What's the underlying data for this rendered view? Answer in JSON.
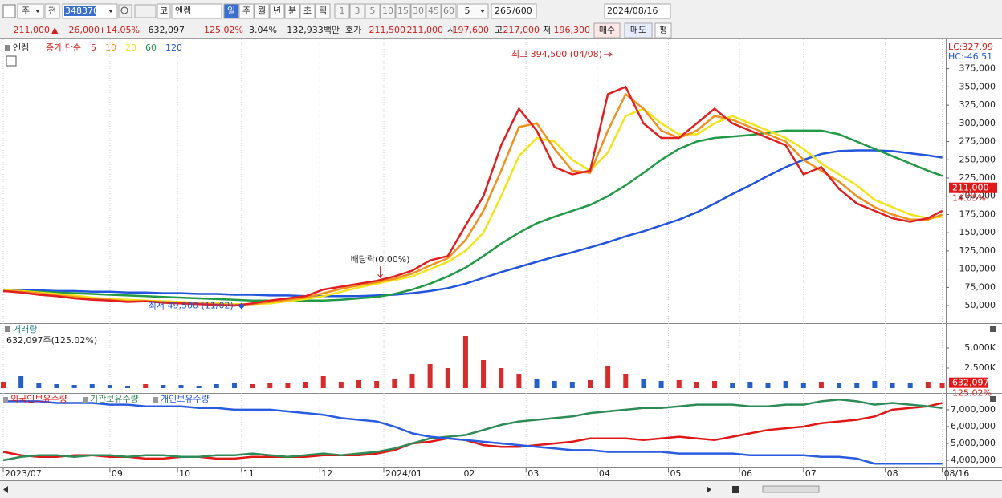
{
  "toolbar": {
    "market": "주",
    "prev": "전",
    "code": "348370",
    "exchange": "코",
    "name": "엔켐",
    "periods": [
      "일",
      "주",
      "월",
      "년",
      "분",
      "초",
      "틱"
    ],
    "minutes": [
      "1",
      "3",
      "5",
      "10",
      "15",
      "30",
      "45",
      "60"
    ],
    "interval": "5",
    "count": "265",
    "max": "/600",
    "date": "2024/08/16"
  },
  "quote": {
    "price": "211,000",
    "arrow": "▲",
    "change": "26,000",
    "rate": "+14.05%",
    "volume": "632,097",
    "volume_rate": "125.02%",
    "turnover": "3.04%",
    "amount": "132,933백만",
    "ask_label": "호가",
    "ask": "211,500",
    "bid": "211,000",
    "open_label": "시",
    "open": "197,600",
    "high_label": "고",
    "high": "217,000",
    "low_label": "저",
    "low": "196,300",
    "buy": "매수",
    "sell": "매도",
    "avg": "평"
  },
  "chart_data": [
    {
      "type": "line",
      "name": "엔켐",
      "subtitle": "종가 단순",
      "x": [
        0,
        5,
        10,
        15,
        20,
        25,
        30,
        35,
        40,
        45,
        50,
        55,
        60,
        65,
        70,
        75,
        80,
        85,
        90,
        95,
        100,
        105,
        110,
        115,
        120,
        125,
        130,
        135,
        140,
        145,
        150,
        155,
        160,
        165,
        170,
        175,
        180,
        185,
        190,
        195,
        200,
        205,
        210,
        215,
        220,
        225,
        230,
        235,
        240,
        245,
        250,
        255,
        260,
        264
      ],
      "series": [
        {
          "name": "5",
          "color": "#e02020",
          "values": [
            70000,
            68000,
            65000,
            63000,
            60000,
            58000,
            57000,
            55000,
            56000,
            54000,
            53000,
            52000,
            51000,
            50000,
            53000,
            57000,
            60000,
            63000,
            72000,
            76000,
            80000,
            84000,
            90000,
            98000,
            112000,
            118000,
            160000,
            200000,
            270000,
            320000,
            290000,
            240000,
            230000,
            235000,
            340000,
            350000,
            300000,
            280000,
            280000,
            300000,
            320000,
            300000,
            290000,
            280000,
            270000,
            230000,
            240000,
            210000,
            190000,
            180000,
            170000,
            165000,
            170000,
            180000
          ]
        },
        {
          "name": "10",
          "color": "#f0901e",
          "values": [
            70000,
            69000,
            67000,
            64000,
            62000,
            59000,
            58000,
            56000,
            56000,
            55000,
            54000,
            53000,
            52000,
            51000,
            52000,
            55000,
            58000,
            61000,
            67000,
            73000,
            78000,
            82000,
            87000,
            94000,
            105000,
            115000,
            140000,
            180000,
            235000,
            295000,
            300000,
            265000,
            235000,
            232000,
            290000,
            340000,
            320000,
            290000,
            280000,
            290000,
            310000,
            305000,
            295000,
            285000,
            275000,
            250000,
            235000,
            220000,
            200000,
            185000,
            175000,
            168000,
            168000,
            175000
          ]
        },
        {
          "name": "20",
          "color": "#f2e41a",
          "values": [
            71000,
            70000,
            68000,
            66000,
            64000,
            61000,
            59000,
            58000,
            57000,
            56000,
            55000,
            54000,
            53000,
            52000,
            52000,
            53000,
            56000,
            59000,
            63000,
            69000,
            75000,
            80000,
            85000,
            90000,
            100000,
            110000,
            125000,
            150000,
            200000,
            255000,
            280000,
            275000,
            250000,
            235000,
            260000,
            310000,
            320000,
            300000,
            285000,
            285000,
            300000,
            310000,
            300000,
            290000,
            280000,
            265000,
            245000,
            230000,
            215000,
            195000,
            185000,
            175000,
            170000,
            172000
          ]
        },
        {
          "name": "60",
          "color": "#229944",
          "values": [
            70000,
            70000,
            69000,
            68000,
            67000,
            66000,
            65000,
            64000,
            63000,
            62000,
            61000,
            60000,
            59000,
            58000,
            57000,
            57000,
            57000,
            57000,
            57000,
            58000,
            60000,
            62000,
            66000,
            72000,
            80000,
            90000,
            102000,
            118000,
            135000,
            150000,
            163000,
            172000,
            180000,
            188000,
            200000,
            215000,
            232000,
            250000,
            265000,
            275000,
            280000,
            282000,
            284000,
            287000,
            290000,
            290000,
            290000,
            285000,
            275000,
            265000,
            255000,
            245000,
            235000,
            228000
          ]
        },
        {
          "name": "120",
          "color": "#2255dd",
          "values": [
            72000,
            71000,
            71000,
            70000,
            70000,
            69000,
            69000,
            68000,
            68000,
            67000,
            67000,
            66000,
            66000,
            65000,
            65000,
            64000,
            64000,
            63000,
            63000,
            63000,
            63000,
            64000,
            65000,
            67000,
            70000,
            74000,
            80000,
            88000,
            96000,
            103000,
            110000,
            117000,
            123000,
            130000,
            137000,
            145000,
            152000,
            160000,
            168000,
            178000,
            190000,
            203000,
            215000,
            228000,
            240000,
            250000,
            258000,
            262000,
            263000,
            263000,
            262000,
            259000,
            256000,
            253000
          ]
        }
      ],
      "xlim": [
        0,
        265
      ],
      "ylim": [
        27000,
        412000
      ],
      "yticks": [
        {
          "value": 50000,
          "label": "50,000"
        },
        {
          "value": 75000,
          "label": "75,000"
        },
        {
          "value": 100000,
          "label": "100,000"
        },
        {
          "value": 125000,
          "label": "125,000"
        },
        {
          "value": 150000,
          "label": "150,000"
        },
        {
          "value": 175000,
          "label": "175,000"
        },
        {
          "value": 200000,
          "label": "200,000"
        },
        {
          "value": 225000,
          "label": "225,000"
        },
        {
          "value": 250000,
          "label": "250,000"
        },
        {
          "value": 275000,
          "label": "275,000"
        },
        {
          "value": 300000,
          "label": "300,000"
        },
        {
          "value": 325000,
          "label": "325,000"
        },
        {
          "value": 350000,
          "label": "350,000"
        },
        {
          "value": 375000,
          "label": "375,000"
        }
      ],
      "annotations": [
        {
          "text": "최고 394,500 (04/08)",
          "x": 172,
          "value": 394500
        },
        {
          "text": "최저 49,500 (11/02)",
          "x": 67,
          "value": 49500
        },
        {
          "text": "배당락(0.00%)",
          "x": 106,
          "value": 84000
        }
      ],
      "indicators": [
        "LC:327.99",
        "HC:-46.51"
      ],
      "last": {
        "value": 211000,
        "label": "211,000"
      },
      "last_change": "14.05%"
    },
    {
      "type": "bar",
      "title": "거래량",
      "subtitle": "632,097주(125.02%)",
      "x": [
        0,
        5,
        10,
        15,
        20,
        25,
        30,
        35,
        40,
        45,
        50,
        55,
        60,
        65,
        70,
        75,
        80,
        85,
        90,
        95,
        100,
        105,
        110,
        115,
        120,
        125,
        130,
        135,
        140,
        145,
        150,
        155,
        160,
        165,
        170,
        175,
        180,
        185,
        190,
        195,
        200,
        205,
        210,
        215,
        220,
        225,
        230,
        235,
        240,
        245,
        250,
        255,
        260,
        264
      ],
      "values": [
        800000,
        1500000,
        600000,
        500000,
        400000,
        500000,
        400000,
        300000,
        500000,
        400000,
        400000,
        300000,
        500000,
        600000,
        500000,
        700000,
        600000,
        800000,
        1500000,
        800000,
        1000000,
        900000,
        1200000,
        1800000,
        3000000,
        2500000,
        6500000,
        3500000,
        2500000,
        1800000,
        1200000,
        900000,
        800000,
        1000000,
        2800000,
        1800000,
        1200000,
        900000,
        1000000,
        800000,
        900000,
        700000,
        800000,
        600000,
        900000,
        700000,
        800000,
        600000,
        700000,
        900000,
        700000,
        600000,
        800000,
        632097
      ],
      "xlim": [
        0,
        265
      ],
      "ylim": [
        0,
        7500000
      ],
      "yticks": [
        {
          "value": 2500000,
          "label": "2,500K"
        },
        {
          "value": 5000000,
          "label": "5,000K"
        }
      ],
      "last": {
        "value": 632097,
        "label": "632,097"
      },
      "last_rate": "125.02%"
    },
    {
      "type": "line",
      "x": [
        0,
        5,
        10,
        15,
        20,
        25,
        30,
        35,
        40,
        45,
        50,
        55,
        60,
        65,
        70,
        75,
        80,
        85,
        90,
        95,
        100,
        105,
        110,
        115,
        120,
        125,
        130,
        135,
        140,
        145,
        150,
        155,
        160,
        165,
        170,
        175,
        180,
        185,
        190,
        195,
        200,
        205,
        210,
        215,
        220,
        225,
        230,
        235,
        240,
        245,
        250,
        255,
        260,
        264
      ],
      "series": [
        {
          "name": "외국인보유수량",
          "color": "#e01818",
          "values": [
            4500000,
            4300000,
            4200000,
            4200000,
            4300000,
            4300000,
            4200000,
            4200000,
            4100000,
            4100000,
            4200000,
            4200000,
            4100000,
            4100000,
            4200000,
            4200000,
            4200000,
            4200000,
            4300000,
            4300000,
            4300000,
            4400000,
            4600000,
            5000000,
            5100000,
            5300000,
            5200000,
            4900000,
            4800000,
            4800000,
            4900000,
            5000000,
            5100000,
            5300000,
            5300000,
            5300000,
            5200000,
            5300000,
            5400000,
            5300000,
            5200000,
            5400000,
            5600000,
            5800000,
            5900000,
            6000000,
            6200000,
            6300000,
            6400000,
            6600000,
            7000000,
            7100000,
            7200000,
            7400000
          ]
        },
        {
          "name": "기관보유수량",
          "color": "#2e8b57",
          "values": [
            4000000,
            4200000,
            4300000,
            4300000,
            4200000,
            4300000,
            4300000,
            4200000,
            4300000,
            4300000,
            4200000,
            4200000,
            4300000,
            4300000,
            4400000,
            4300000,
            4200000,
            4300000,
            4400000,
            4300000,
            4400000,
            4500000,
            4700000,
            5000000,
            5300000,
            5400000,
            5500000,
            5800000,
            6100000,
            6300000,
            6400000,
            6500000,
            6600000,
            6800000,
            6900000,
            7000000,
            7100000,
            7100000,
            7200000,
            7300000,
            7300000,
            7300000,
            7200000,
            7200000,
            7300000,
            7300000,
            7500000,
            7600000,
            7500000,
            7300000,
            7400000,
            7300000,
            7200000,
            7100000
          ]
        },
        {
          "name": "개인보유수량",
          "color": "#2a5ce0",
          "values": [
            7500000,
            7500000,
            7500000,
            7400000,
            7400000,
            7400000,
            7300000,
            7300000,
            7200000,
            7200000,
            7200000,
            7100000,
            7100000,
            7000000,
            7000000,
            7000000,
            6900000,
            6800000,
            6700000,
            6500000,
            6400000,
            6300000,
            6000000,
            5600000,
            5400000,
            5300000,
            5200000,
            5100000,
            5000000,
            4900000,
            4800000,
            4700000,
            4600000,
            4600000,
            4500000,
            4500000,
            4500000,
            4500000,
            4400000,
            4400000,
            4400000,
            4400000,
            4300000,
            4300000,
            4300000,
            4300000,
            4200000,
            4200000,
            4100000,
            3800000,
            3800000,
            3800000,
            3800000,
            3800000
          ]
        }
      ],
      "xlim": [
        0,
        265
      ],
      "ylim": [
        3620000,
        7900000
      ],
      "yticks": [
        {
          "value": 4000000,
          "label": "4,000,000"
        },
        {
          "value": 5000000,
          "label": "5,000,000"
        },
        {
          "value": 6000000,
          "label": "6,000,000"
        },
        {
          "value": 7000000,
          "label": "7,000,000"
        }
      ],
      "xticks": [
        {
          "value": 0,
          "label": "2023/07"
        },
        {
          "value": 30,
          "label": "09"
        },
        {
          "value": 49,
          "label": "10"
        },
        {
          "value": 67,
          "label": "11"
        },
        {
          "value": 89,
          "label": "12"
        },
        {
          "value": 107,
          "label": "2024/01"
        },
        {
          "value": 129,
          "label": "02"
        },
        {
          "value": 147,
          "label": "03"
        },
        {
          "value": 167,
          "label": "04"
        },
        {
          "value": 187,
          "label": "05"
        },
        {
          "value": 207,
          "label": "06"
        },
        {
          "value": 225,
          "label": "07"
        },
        {
          "value": 248,
          "label": "08"
        },
        {
          "value": 264,
          "label": "08/16"
        }
      ]
    }
  ]
}
